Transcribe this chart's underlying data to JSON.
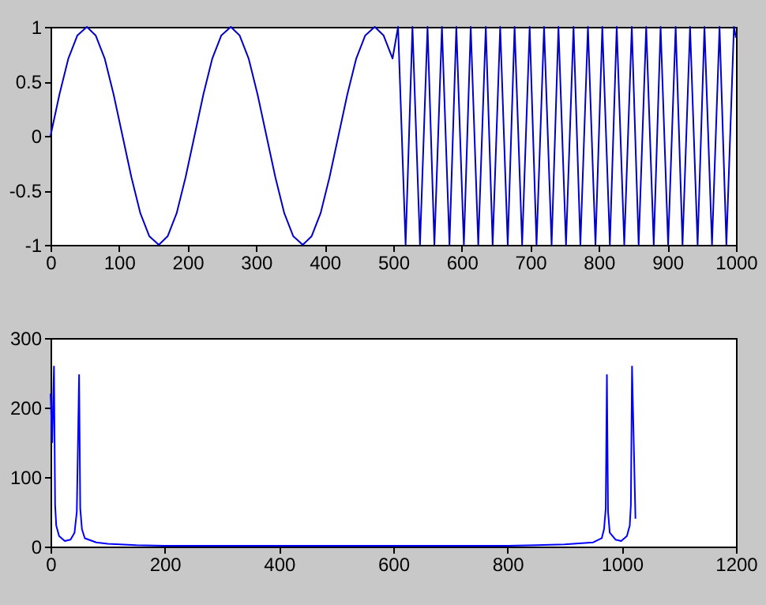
{
  "chart_data": [
    {
      "type": "line",
      "xlim": [
        0,
        1000
      ],
      "ylim": [
        -1,
        1
      ],
      "xticks": [
        0,
        100,
        200,
        300,
        400,
        500,
        600,
        700,
        800,
        900,
        1000
      ],
      "yticks": [
        -1,
        -0.5,
        0,
        0.5,
        1
      ],
      "grid": false,
      "marker": "none",
      "line_style": "solid",
      "x": [
        0,
        13,
        26,
        39,
        53,
        66,
        79,
        92,
        105,
        118,
        131,
        144,
        158,
        171,
        184,
        197,
        210,
        223,
        236,
        249,
        263,
        276,
        289,
        302,
        315,
        328,
        341,
        354,
        368,
        381,
        394,
        407,
        420,
        433,
        446,
        459,
        473,
        486,
        499,
        507,
        518,
        528,
        539,
        550,
        560,
        571,
        582,
        592,
        603,
        613,
        624,
        635,
        645,
        656,
        667,
        677,
        688,
        699,
        709,
        720,
        731,
        741,
        752,
        763,
        773,
        784,
        795,
        805,
        816,
        826,
        837,
        848,
        858,
        869,
        880,
        890,
        901,
        912,
        922,
        933,
        944,
        954,
        965,
        976,
        986,
        997,
        1000
      ],
      "series": [
        {
          "color": "#0000c8",
          "values": [
            0,
            0.38,
            0.71,
            0.92,
            1,
            0.92,
            0.71,
            0.38,
            0,
            -0.38,
            -0.71,
            -0.92,
            -1,
            -0.92,
            -0.71,
            -0.38,
            0,
            0.38,
            0.71,
            0.92,
            1,
            0.92,
            0.71,
            0.38,
            0,
            -0.38,
            -0.71,
            -0.92,
            -1,
            -0.92,
            -0.71,
            -0.38,
            0,
            0.38,
            0.71,
            0.92,
            1,
            0.92,
            0.71,
            1,
            -1,
            1,
            -1,
            1,
            -1,
            1,
            -1,
            1,
            -1,
            1,
            -1,
            1,
            -1,
            1,
            -1,
            1,
            -1,
            1,
            -1,
            1,
            -1,
            1,
            -1,
            1,
            -1,
            1,
            -1,
            1,
            -1,
            1,
            -1,
            1,
            -1,
            1,
            -1,
            1,
            -1,
            1,
            -1,
            1,
            -1,
            1,
            -1,
            1,
            -1,
            1,
            0.9
          ]
        }
      ]
    },
    {
      "type": "line",
      "xlim": [
        0,
        1200
      ],
      "ylim": [
        0,
        300
      ],
      "xticks": [
        0,
        200,
        400,
        600,
        800,
        1000,
        1200
      ],
      "yticks": [
        0,
        100,
        200,
        300
      ],
      "grid": false,
      "marker": "none",
      "line_style": "solid",
      "x": [
        0,
        3,
        6,
        8,
        10,
        15,
        25,
        35,
        42,
        46,
        50,
        52,
        55,
        60,
        80,
        100,
        150,
        200,
        400,
        600,
        800,
        850,
        900,
        950,
        965,
        969,
        972,
        974,
        976,
        979,
        989,
        999,
        1009,
        1014,
        1016,
        1018,
        1021,
        1024
      ],
      "series": [
        {
          "color": "#0000ff",
          "values": [
            220,
            150,
            259,
            60,
            30,
            15,
            8,
            10,
            20,
            50,
            247,
            55,
            25,
            12,
            6,
            4,
            2,
            1,
            1,
            1,
            1,
            2,
            3,
            6,
            12,
            25,
            55,
            247,
            50,
            20,
            10,
            8,
            15,
            30,
            60,
            259,
            150,
            40
          ]
        }
      ]
    }
  ]
}
